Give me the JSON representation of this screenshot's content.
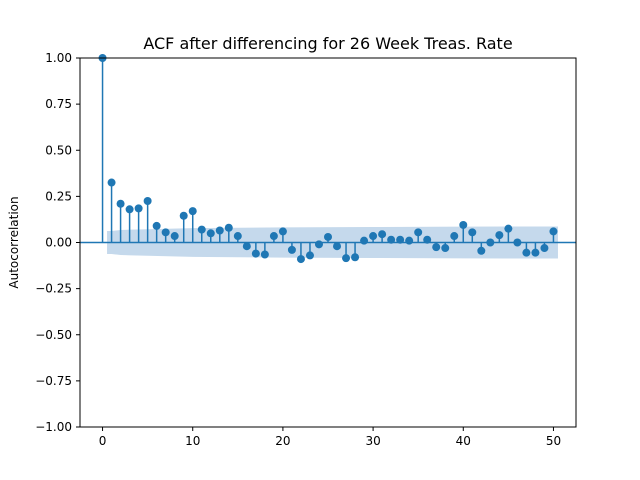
{
  "chart_data": {
    "type": "scatter",
    "subtype": "stem",
    "title": "ACF after differencing for 26 Week Treas. Rate",
    "xlabel": "",
    "ylabel": "Autocorrelation",
    "xlim": [
      -2.5,
      52.5
    ],
    "ylim": [
      -1.0,
      1.0
    ],
    "xticks": [
      0,
      10,
      20,
      30,
      40,
      50
    ],
    "xtick_labels": [
      "0",
      "10",
      "20",
      "30",
      "40",
      "50"
    ],
    "yticks": [
      -1.0,
      -0.75,
      -0.5,
      -0.25,
      0.0,
      0.25,
      0.5,
      0.75,
      1.0
    ],
    "ytick_labels": [
      "−1.00",
      "−0.75",
      "−0.50",
      "−0.25",
      "0.00",
      "0.25",
      "0.50",
      "0.75",
      "1.00"
    ],
    "grid": false,
    "colors": {
      "stem": "#1f77b4",
      "confidence_band": "#c5d9ec"
    },
    "lags": [
      0,
      1,
      2,
      3,
      4,
      5,
      6,
      7,
      8,
      9,
      10,
      11,
      12,
      13,
      14,
      15,
      16,
      17,
      18,
      19,
      20,
      21,
      22,
      23,
      24,
      25,
      26,
      27,
      28,
      29,
      30,
      31,
      32,
      33,
      34,
      35,
      36,
      37,
      38,
      39,
      40,
      41,
      42,
      43,
      44,
      45,
      46,
      47,
      48,
      49,
      50
    ],
    "values": [
      1.0,
      0.325,
      0.21,
      0.18,
      0.185,
      0.225,
      0.09,
      0.055,
      0.035,
      0.145,
      0.17,
      0.07,
      0.05,
      0.065,
      0.08,
      0.035,
      -0.02,
      -0.06,
      -0.065,
      0.035,
      0.06,
      -0.04,
      -0.09,
      -0.07,
      -0.01,
      0.03,
      -0.02,
      -0.085,
      -0.08,
      0.01,
      0.035,
      0.045,
      0.015,
      0.015,
      0.01,
      0.055,
      0.015,
      -0.025,
      -0.03,
      0.035,
      0.095,
      0.055,
      -0.045,
      0.0,
      0.04,
      0.075,
      0.0,
      -0.055,
      -0.055,
      -0.03,
      0.06
    ],
    "confidence_band": {
      "lags": [
        0.5,
        1,
        2,
        5,
        10,
        20,
        30,
        40,
        50,
        50.5
      ],
      "upper": [
        0.062,
        0.062,
        0.068,
        0.072,
        0.078,
        0.082,
        0.084,
        0.086,
        0.087,
        0.087
      ],
      "lower": [
        -0.062,
        -0.062,
        -0.068,
        -0.072,
        -0.078,
        -0.082,
        -0.084,
        -0.086,
        -0.087,
        -0.087
      ]
    }
  }
}
